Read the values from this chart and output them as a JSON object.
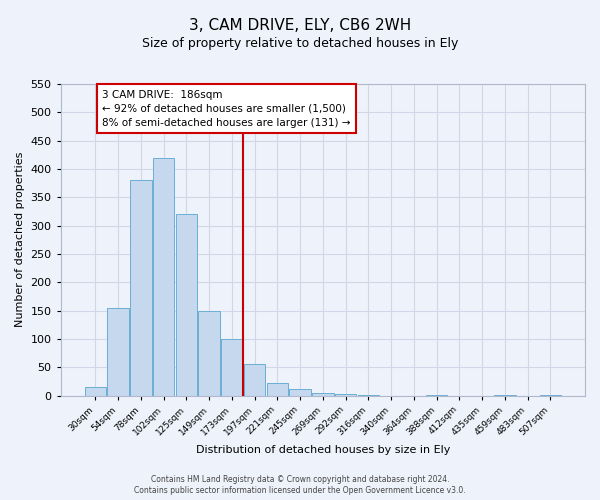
{
  "title": "3, CAM DRIVE, ELY, CB6 2WH",
  "subtitle": "Size of property relative to detached houses in Ely",
  "xlabel": "Distribution of detached houses by size in Ely",
  "ylabel": "Number of detached properties",
  "bin_labels": [
    "30sqm",
    "54sqm",
    "78sqm",
    "102sqm",
    "125sqm",
    "149sqm",
    "173sqm",
    "197sqm",
    "221sqm",
    "245sqm",
    "269sqm",
    "292sqm",
    "316sqm",
    "340sqm",
    "364sqm",
    "388sqm",
    "412sqm",
    "435sqm",
    "459sqm",
    "483sqm",
    "507sqm"
  ],
  "bar_values": [
    15,
    155,
    380,
    420,
    320,
    150,
    100,
    55,
    22,
    12,
    4,
    2,
    1,
    0,
    0,
    1,
    0,
    0,
    1,
    0,
    1
  ],
  "bar_color": "#c5d8ee",
  "bar_edge_color": "#6baed6",
  "vline_color": "#cc0000",
  "ylim": [
    0,
    550
  ],
  "yticks": [
    0,
    50,
    100,
    150,
    200,
    250,
    300,
    350,
    400,
    450,
    500,
    550
  ],
  "annotation_title": "3 CAM DRIVE:  186sqm",
  "annotation_line1": "← 92% of detached houses are smaller (1,500)",
  "annotation_line2": "8% of semi-detached houses are larger (131) →",
  "annotation_box_color": "white",
  "annotation_box_edge": "#cc0000",
  "footnote1": "Contains HM Land Registry data © Crown copyright and database right 2024.",
  "footnote2": "Contains public sector information licensed under the Open Government Licence v3.0.",
  "background_color": "#eef2fa",
  "grid_color": "#d0d8e8"
}
